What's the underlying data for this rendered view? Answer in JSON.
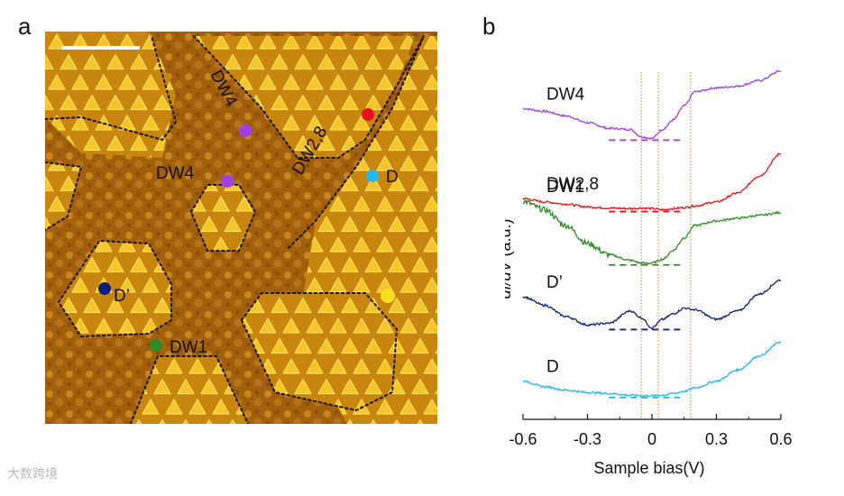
{
  "panel_a": {
    "letter": "a",
    "labels": {
      "dw4_top": "DW4",
      "dw28": "DW2,8",
      "dw4_mid": "DW4",
      "d": "D",
      "dprime": "D’",
      "dw1": "DW1"
    },
    "marker_colors": {
      "red": "#e8101a",
      "purple": "#a040e8",
      "cyan": "#28b8e8",
      "navy": "#10207a",
      "green": "#2e8a22",
      "yellow": "#f8e020"
    }
  },
  "panel_b": {
    "letter": "b"
  },
  "watermark": "大数跨境",
  "chart_data": {
    "type": "line",
    "xlabel": "Sample bias(V)",
    "ylabel": "dI/dV (a.u.)",
    "xlim": [
      -0.6,
      0.6
    ],
    "xticks": [
      "-0.6",
      "-0.3",
      "0",
      "0.3",
      "0.6"
    ],
    "xtick_values": [
      -0.6,
      -0.3,
      0,
      0.3,
      0.6
    ],
    "vlines": [
      -0.05,
      0.03,
      0.18
    ],
    "x": [
      -0.6,
      -0.5,
      -0.4,
      -0.3,
      -0.2,
      -0.1,
      -0.05,
      0.0,
      0.05,
      0.1,
      0.15,
      0.2,
      0.3,
      0.4,
      0.5,
      0.6
    ],
    "series": [
      {
        "name": "DW4",
        "color": "#a040e8",
        "offset": 4.6,
        "values": [
          0.55,
          0.5,
          0.42,
          0.3,
          0.2,
          0.18,
          0.05,
          0.02,
          0.18,
          0.35,
          0.6,
          0.85,
          0.92,
          0.95,
          1.05,
          1.22
        ]
      },
      {
        "name": "DW2,8",
        "color": "#e8101a",
        "offset": 3.35,
        "values": [
          0.2,
          0.14,
          0.1,
          0.05,
          0.03,
          0.02,
          0.03,
          0.02,
          0.0,
          0.02,
          0.04,
          0.07,
          0.14,
          0.3,
          0.6,
          1.0
        ]
      },
      {
        "name": "DW1",
        "color": "#2e8a22",
        "offset": 2.35,
        "values": [
          1.15,
          1.0,
          0.72,
          0.4,
          0.2,
          0.1,
          0.05,
          0.05,
          0.12,
          0.28,
          0.5,
          0.72,
          0.8,
          0.85,
          0.9,
          0.95
        ]
      },
      {
        "name": "D’",
        "color": "#10207a",
        "offset": 1.15,
        "values": [
          0.65,
          0.5,
          0.3,
          0.15,
          0.18,
          0.4,
          0.28,
          0.1,
          0.25,
          0.35,
          0.45,
          0.42,
          0.25,
          0.4,
          0.7,
          0.95
        ]
      },
      {
        "name": "D",
        "color": "#28b8e8",
        "offset": 0.0,
        "values": [
          0.3,
          0.2,
          0.14,
          0.1,
          0.08,
          0.05,
          0.04,
          0.04,
          0.05,
          0.08,
          0.12,
          0.18,
          0.3,
          0.5,
          0.75,
          1.0
        ]
      }
    ]
  }
}
